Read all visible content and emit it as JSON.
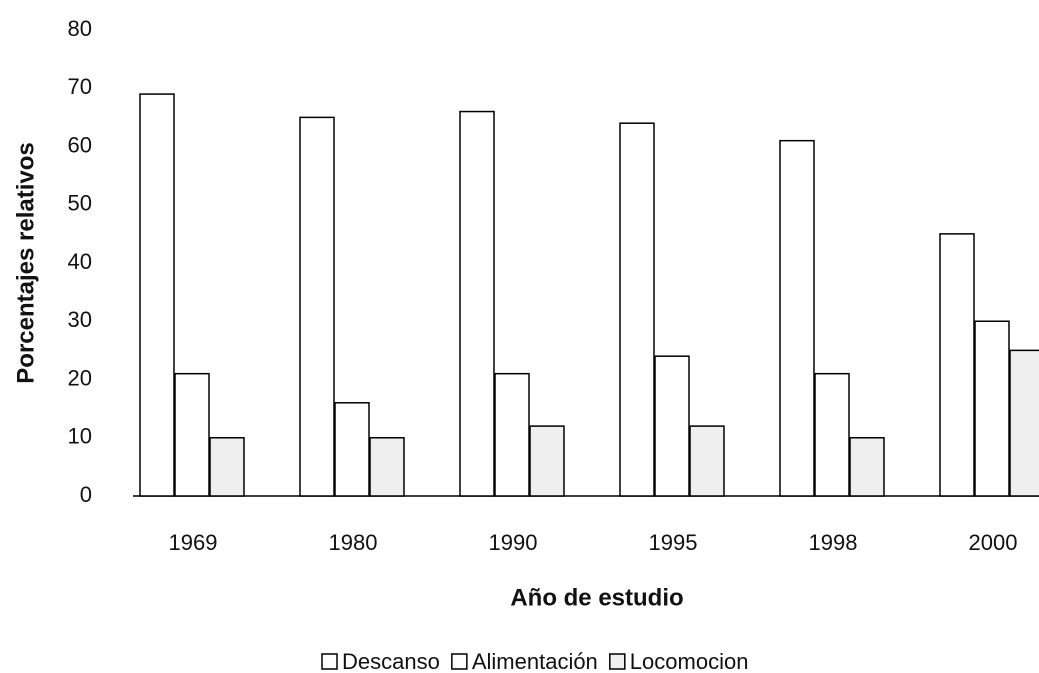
{
  "chart_data": {
    "type": "bar",
    "categories": [
      "1969",
      "1980",
      "1990",
      "1995",
      "1998",
      "2000"
    ],
    "series": [
      {
        "name": "Descanso",
        "color": "#ffffff",
        "values": [
          69,
          65,
          66,
          64,
          61,
          45
        ]
      },
      {
        "name": "Alimentación",
        "color": "#ffffff",
        "values": [
          21,
          16,
          21,
          24,
          21,
          30
        ]
      },
      {
        "name": "Locomocion",
        "color": "#efefef",
        "values": [
          10,
          10,
          12,
          12,
          10,
          25
        ]
      }
    ],
    "xlabel": "Año de estudio",
    "ylabel": "Porcentajes relativos",
    "ylim": [
      0,
      80
    ],
    "yticks": [
      0,
      10,
      20,
      30,
      40,
      50,
      60,
      70,
      80
    ],
    "legend": "bottom"
  }
}
